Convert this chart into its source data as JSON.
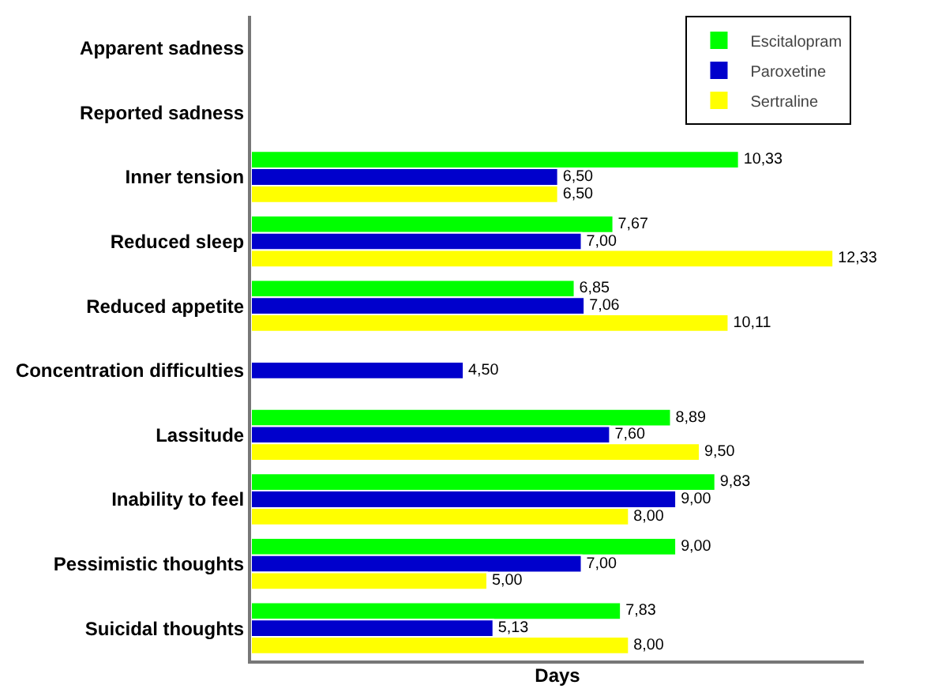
{
  "chart_data": {
    "type": "bar",
    "orientation": "horizontal",
    "xlabel": "Days",
    "legend": "top right",
    "grid": false,
    "categories": [
      "Apparent sadness",
      "Reported sadness",
      "Inner tension",
      "Reduced sleep",
      "Reduced appetite",
      "Concentration difficulties",
      "Lassitude",
      "Inability to feel",
      "Pessimistic thoughts",
      "Suicidal thoughts"
    ],
    "series": [
      {
        "name": "Escitalopram",
        "color": "#00ff00",
        "values": [
          null,
          null,
          10.33,
          7.67,
          6.85,
          null,
          8.89,
          9.83,
          9.0,
          7.83
        ],
        "value_labels": [
          null,
          null,
          "10,33",
          "7,67",
          "6,85",
          null,
          "8,89",
          "9,83",
          "9,00",
          "7,83"
        ]
      },
      {
        "name": "Paroxetine",
        "color": "#0000cc",
        "values": [
          null,
          null,
          6.5,
          7.0,
          7.06,
          4.5,
          7.6,
          9.0,
          7.0,
          5.13
        ],
        "value_labels": [
          null,
          null,
          "6,50",
          "7,00",
          "7,06",
          "4,50",
          "7,60",
          "9,00",
          "7,00",
          "5,13"
        ]
      },
      {
        "name": "Sertraline",
        "color": "#ffff00",
        "values": [
          null,
          null,
          6.5,
          12.33,
          10.11,
          null,
          9.5,
          8.0,
          5.0,
          8.0
        ],
        "value_labels": [
          null,
          null,
          "6,50",
          "12,33",
          "10,11",
          null,
          "9,50",
          "8,00",
          "5,00",
          "8,00"
        ]
      }
    ]
  }
}
